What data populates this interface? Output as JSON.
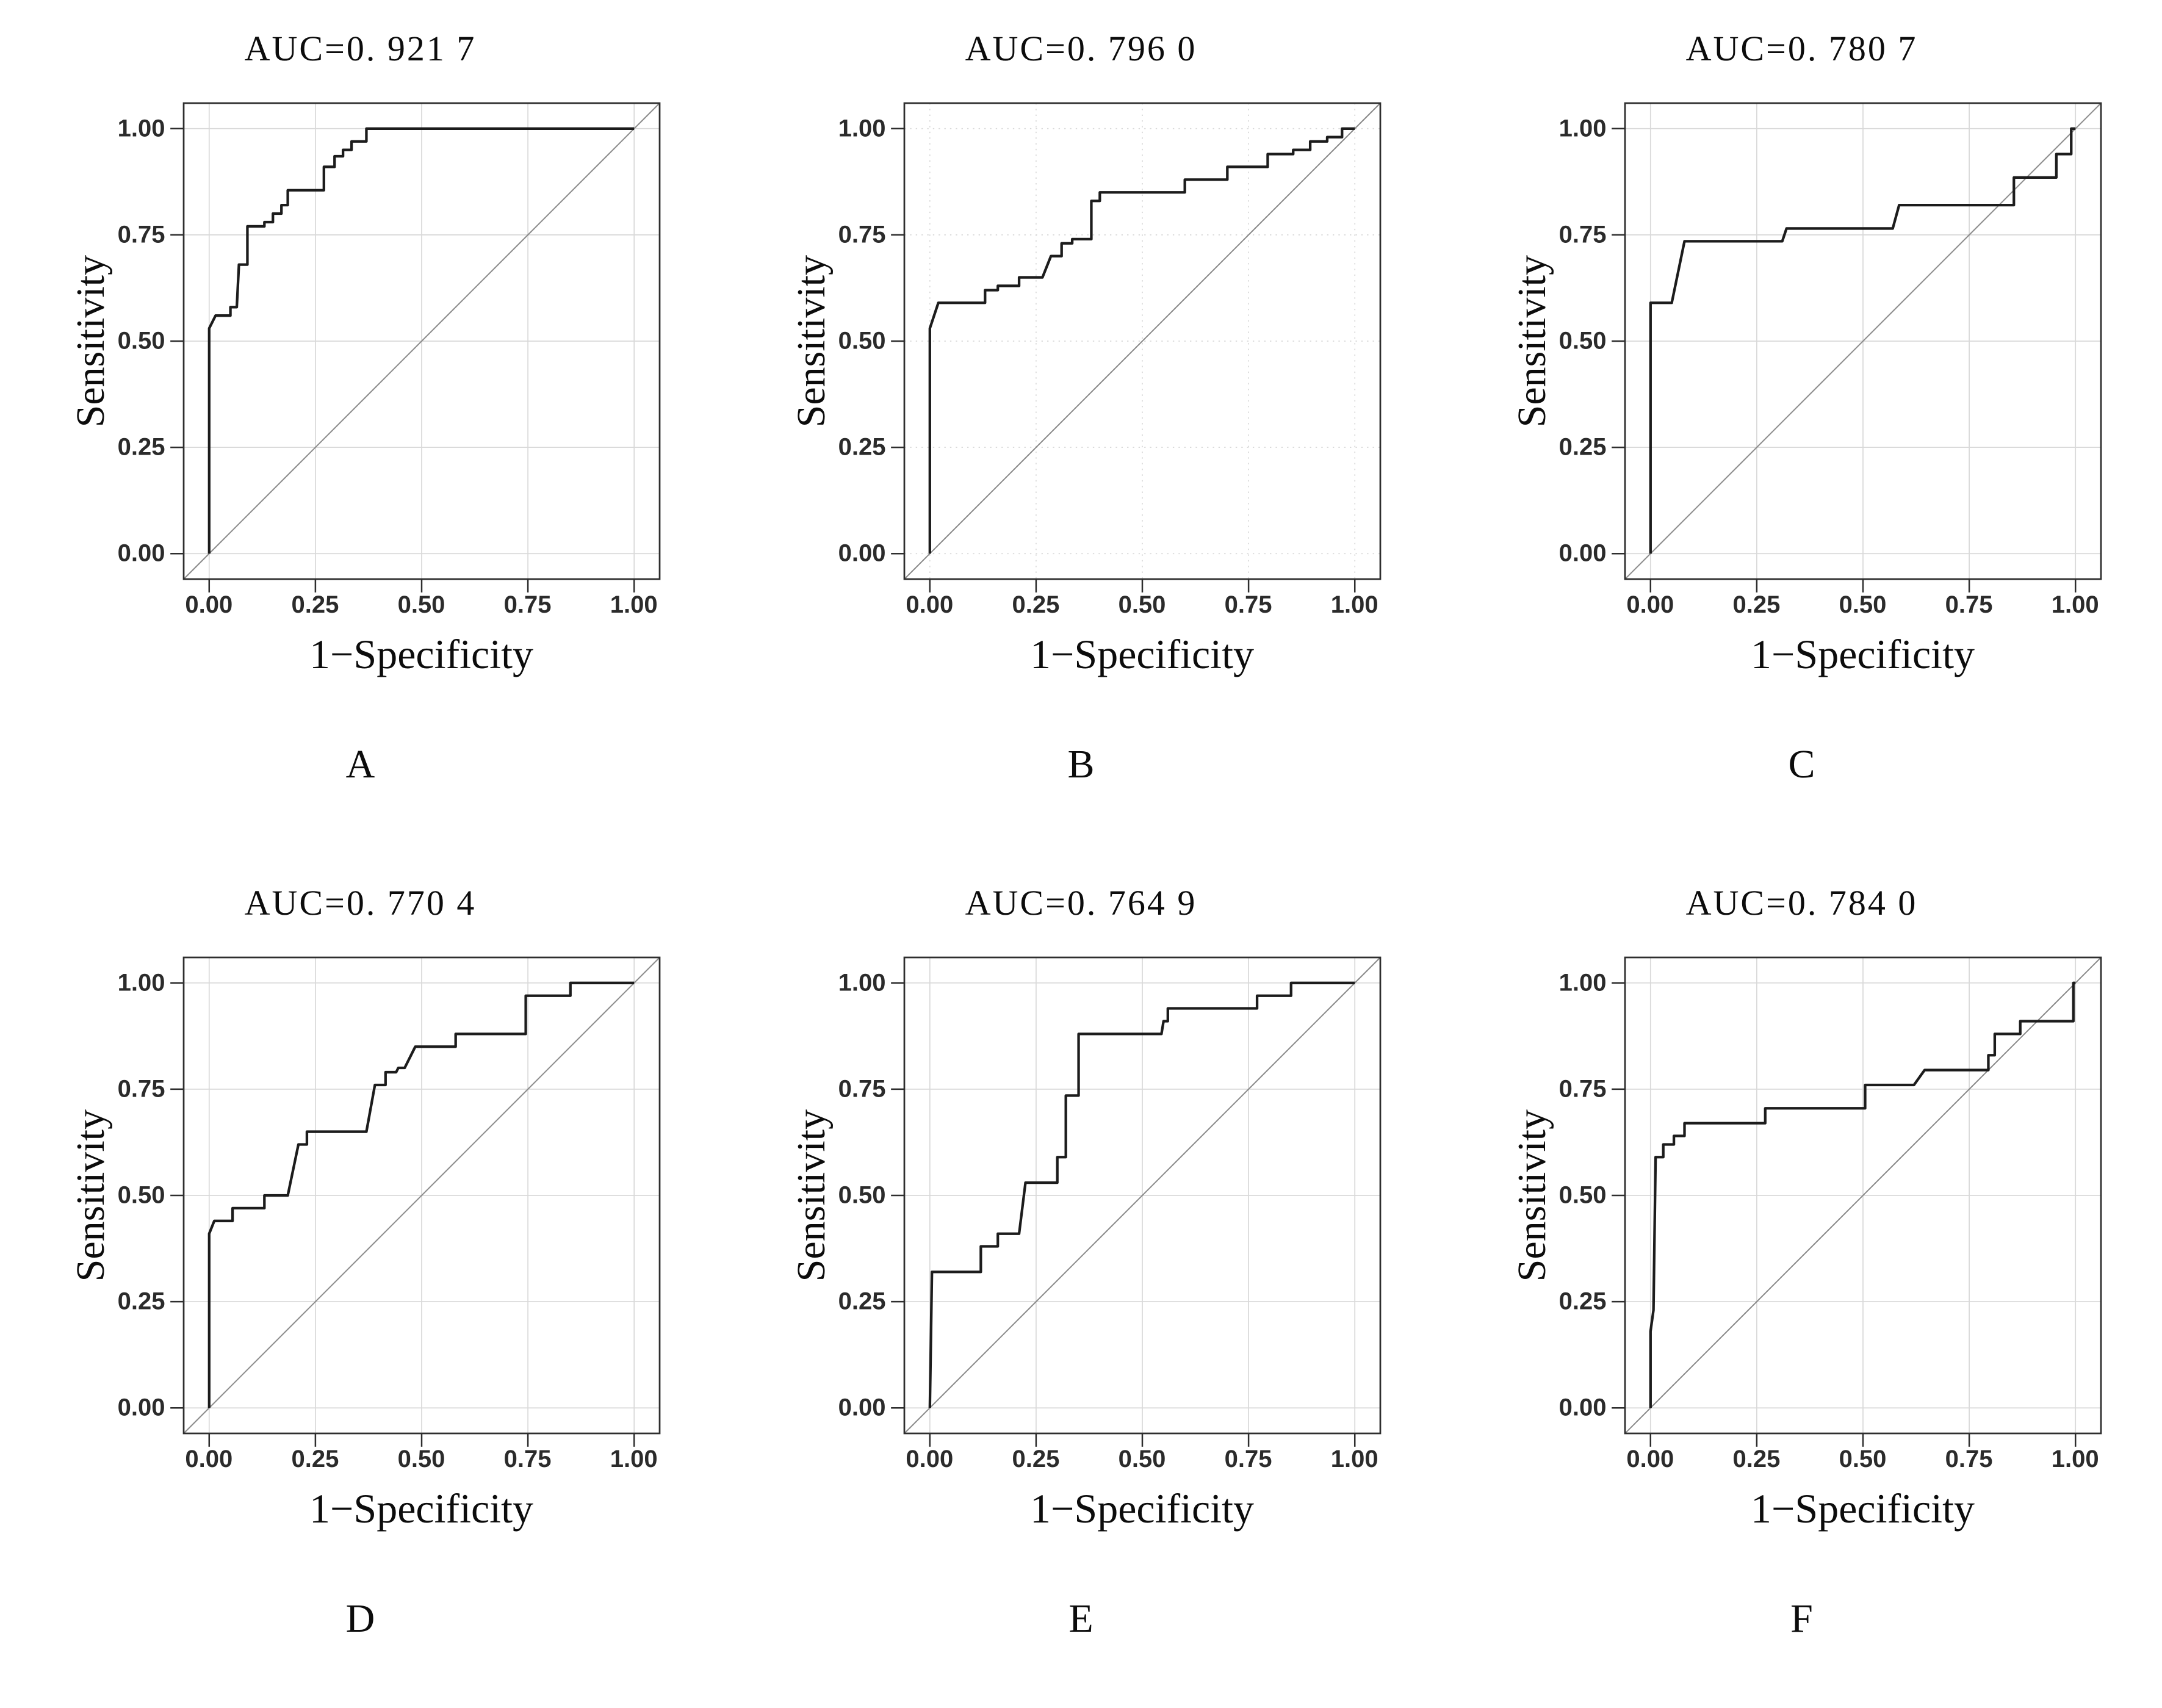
{
  "figure": {
    "xlabel": "1−Specificity",
    "ylabel": "Sensitivity",
    "x_ticks": [
      "0.00",
      "0.25",
      "0.50",
      "0.75",
      "1.00"
    ],
    "y_ticks": [
      "0.00",
      "0.25",
      "0.50",
      "0.75",
      "1.00"
    ],
    "x_tick_values": [
      0,
      0.25,
      0.5,
      0.75,
      1
    ],
    "y_tick_values": [
      0,
      0.25,
      0.5,
      0.75,
      1
    ],
    "colors": {
      "curve": "#1c1c1c",
      "diagonal": "#8a8a8a",
      "grid": "#d9d9d9",
      "border": "#2e2e2e",
      "background": "#ffffff",
      "text": "#0c0c0c"
    }
  },
  "chart_data": [
    {
      "type": "line",
      "panel_label": "A",
      "title": "AUC=0. 921 7",
      "auc": 0.9217,
      "xlabel": "1−Specificity",
      "ylabel": "Sensitivity",
      "xlim": [
        0,
        1
      ],
      "ylim": [
        0,
        1
      ],
      "grid": true,
      "grid_style": "solid",
      "legend": "none",
      "diagonal_reference": true,
      "roc_points": [
        [
          0,
          0
        ],
        [
          0,
          0.53
        ],
        [
          0.015,
          0.56
        ],
        [
          0.05,
          0.56
        ],
        [
          0.05,
          0.58
        ],
        [
          0.065,
          0.58
        ],
        [
          0.07,
          0.68
        ],
        [
          0.09,
          0.68
        ],
        [
          0.09,
          0.77
        ],
        [
          0.13,
          0.77
        ],
        [
          0.13,
          0.78
        ],
        [
          0.15,
          0.78
        ],
        [
          0.15,
          0.8
        ],
        [
          0.17,
          0.8
        ],
        [
          0.17,
          0.82
        ],
        [
          0.185,
          0.82
        ],
        [
          0.185,
          0.855
        ],
        [
          0.27,
          0.855
        ],
        [
          0.27,
          0.91
        ],
        [
          0.295,
          0.91
        ],
        [
          0.295,
          0.935
        ],
        [
          0.315,
          0.935
        ],
        [
          0.315,
          0.95
        ],
        [
          0.335,
          0.95
        ],
        [
          0.335,
          0.97
        ],
        [
          0.37,
          0.97
        ],
        [
          0.37,
          1
        ],
        [
          1,
          1
        ]
      ]
    },
    {
      "type": "line",
      "panel_label": "B",
      "title": "AUC=0. 796 0",
      "auc": 0.796,
      "xlabel": "1−Specificity",
      "ylabel": "Sensitivity",
      "xlim": [
        0,
        1
      ],
      "ylim": [
        0,
        1
      ],
      "grid": true,
      "grid_style": "dotted",
      "legend": "none",
      "diagonal_reference": true,
      "roc_points": [
        [
          0,
          0
        ],
        [
          0,
          0.53
        ],
        [
          0.02,
          0.59
        ],
        [
          0.13,
          0.59
        ],
        [
          0.13,
          0.62
        ],
        [
          0.16,
          0.62
        ],
        [
          0.16,
          0.63
        ],
        [
          0.21,
          0.63
        ],
        [
          0.21,
          0.65
        ],
        [
          0.265,
          0.65
        ],
        [
          0.285,
          0.7
        ],
        [
          0.31,
          0.7
        ],
        [
          0.31,
          0.73
        ],
        [
          0.335,
          0.73
        ],
        [
          0.335,
          0.74
        ],
        [
          0.38,
          0.74
        ],
        [
          0.38,
          0.83
        ],
        [
          0.4,
          0.83
        ],
        [
          0.4,
          0.85
        ],
        [
          0.6,
          0.85
        ],
        [
          0.6,
          0.88
        ],
        [
          0.7,
          0.88
        ],
        [
          0.7,
          0.91
        ],
        [
          0.795,
          0.91
        ],
        [
          0.795,
          0.94
        ],
        [
          0.855,
          0.94
        ],
        [
          0.855,
          0.95
        ],
        [
          0.895,
          0.95
        ],
        [
          0.895,
          0.97
        ],
        [
          0.935,
          0.97
        ],
        [
          0.935,
          0.98
        ],
        [
          0.97,
          0.98
        ],
        [
          0.97,
          1
        ],
        [
          1,
          1
        ]
      ]
    },
    {
      "type": "line",
      "panel_label": "C",
      "title": "AUC=0. 780 7",
      "auc": 0.7807,
      "xlabel": "1−Specificity",
      "ylabel": "Sensitivity",
      "xlim": [
        0,
        1
      ],
      "ylim": [
        0,
        1
      ],
      "grid": true,
      "grid_style": "solid",
      "legend": "none",
      "diagonal_reference": true,
      "roc_points": [
        [
          0,
          0
        ],
        [
          0,
          0.59
        ],
        [
          0.05,
          0.59
        ],
        [
          0.08,
          0.735
        ],
        [
          0.31,
          0.735
        ],
        [
          0.32,
          0.765
        ],
        [
          0.57,
          0.765
        ],
        [
          0.585,
          0.82
        ],
        [
          0.855,
          0.82
        ],
        [
          0.855,
          0.885
        ],
        [
          0.955,
          0.885
        ],
        [
          0.955,
          0.94
        ],
        [
          0.99,
          0.94
        ],
        [
          0.99,
          1
        ],
        [
          1,
          1
        ]
      ]
    },
    {
      "type": "line",
      "panel_label": "D",
      "title": "AUC=0. 770 4",
      "auc": 0.7704,
      "xlabel": "1−Specificity",
      "ylabel": "Sensitivity",
      "xlim": [
        0,
        1
      ],
      "ylim": [
        0,
        1
      ],
      "grid": true,
      "grid_style": "solid",
      "legend": "none",
      "diagonal_reference": true,
      "roc_points": [
        [
          0,
          0
        ],
        [
          0,
          0.41
        ],
        [
          0.012,
          0.44
        ],
        [
          0.055,
          0.44
        ],
        [
          0.055,
          0.47
        ],
        [
          0.13,
          0.47
        ],
        [
          0.13,
          0.5
        ],
        [
          0.185,
          0.5
        ],
        [
          0.21,
          0.62
        ],
        [
          0.23,
          0.62
        ],
        [
          0.23,
          0.65
        ],
        [
          0.37,
          0.65
        ],
        [
          0.39,
          0.76
        ],
        [
          0.415,
          0.76
        ],
        [
          0.415,
          0.79
        ],
        [
          0.44,
          0.79
        ],
        [
          0.445,
          0.8
        ],
        [
          0.46,
          0.8
        ],
        [
          0.485,
          0.85
        ],
        [
          0.58,
          0.85
        ],
        [
          0.58,
          0.88
        ],
        [
          0.745,
          0.88
        ],
        [
          0.745,
          0.97
        ],
        [
          0.85,
          0.97
        ],
        [
          0.85,
          1
        ],
        [
          1,
          1
        ]
      ]
    },
    {
      "type": "line",
      "panel_label": "E",
      "title": "AUC=0. 764 9",
      "auc": 0.7649,
      "xlabel": "1−Specificity",
      "ylabel": "Sensitivity",
      "xlim": [
        0,
        1
      ],
      "ylim": [
        0,
        1
      ],
      "grid": true,
      "grid_style": "solid",
      "legend": "none",
      "diagonal_reference": true,
      "roc_points": [
        [
          0,
          0
        ],
        [
          0.005,
          0.32
        ],
        [
          0.12,
          0.32
        ],
        [
          0.12,
          0.38
        ],
        [
          0.16,
          0.38
        ],
        [
          0.16,
          0.41
        ],
        [
          0.21,
          0.41
        ],
        [
          0.225,
          0.53
        ],
        [
          0.3,
          0.53
        ],
        [
          0.3,
          0.59
        ],
        [
          0.32,
          0.59
        ],
        [
          0.32,
          0.735
        ],
        [
          0.35,
          0.735
        ],
        [
          0.35,
          0.88
        ],
        [
          0.545,
          0.88
        ],
        [
          0.55,
          0.91
        ],
        [
          0.56,
          0.91
        ],
        [
          0.56,
          0.94
        ],
        [
          0.77,
          0.94
        ],
        [
          0.77,
          0.97
        ],
        [
          0.85,
          0.97
        ],
        [
          0.85,
          1
        ],
        [
          1,
          1
        ]
      ]
    },
    {
      "type": "line",
      "panel_label": "F",
      "title": "AUC=0. 784 0",
      "auc": 0.784,
      "xlabel": "1−Specificity",
      "ylabel": "Sensitivity",
      "xlim": [
        0,
        1
      ],
      "ylim": [
        0,
        1
      ],
      "grid": true,
      "grid_style": "solid",
      "legend": "none",
      "diagonal_reference": true,
      "roc_points": [
        [
          0,
          0
        ],
        [
          0,
          0.18
        ],
        [
          0.007,
          0.23
        ],
        [
          0.012,
          0.59
        ],
        [
          0.03,
          0.59
        ],
        [
          0.03,
          0.62
        ],
        [
          0.055,
          0.62
        ],
        [
          0.055,
          0.64
        ],
        [
          0.08,
          0.64
        ],
        [
          0.08,
          0.67
        ],
        [
          0.27,
          0.67
        ],
        [
          0.27,
          0.705
        ],
        [
          0.505,
          0.705
        ],
        [
          0.505,
          0.76
        ],
        [
          0.62,
          0.76
        ],
        [
          0.645,
          0.795
        ],
        [
          0.795,
          0.795
        ],
        [
          0.795,
          0.83
        ],
        [
          0.81,
          0.83
        ],
        [
          0.81,
          0.88
        ],
        [
          0.87,
          0.88
        ],
        [
          0.87,
          0.91
        ],
        [
          0.995,
          0.91
        ],
        [
          0.995,
          1
        ],
        [
          1,
          1
        ]
      ]
    }
  ]
}
